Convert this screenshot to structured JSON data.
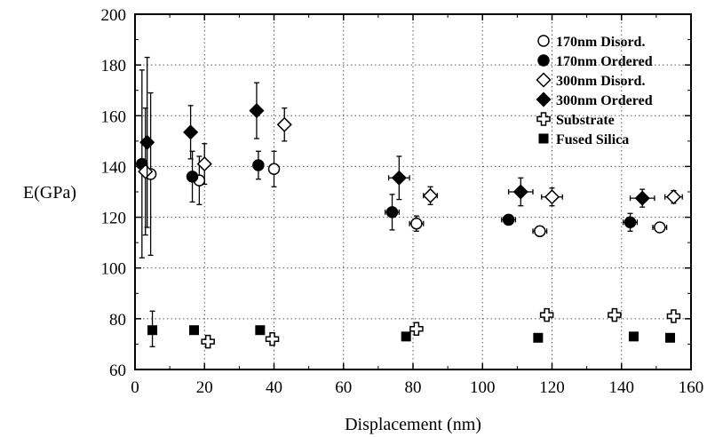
{
  "chart_data": {
    "type": "scatter",
    "xlabel": "Displacement (nm)",
    "ylabel": "E(GPa)",
    "xlim": [
      0,
      160
    ],
    "ylim": [
      60,
      200
    ],
    "xticks": [
      0,
      20,
      40,
      60,
      80,
      100,
      120,
      140,
      160
    ],
    "yticks": [
      60,
      80,
      100,
      120,
      140,
      160,
      180,
      200
    ],
    "grid": true,
    "legend_position": "top-right",
    "series": [
      {
        "name": "170nm Disord.",
        "marker": "open-circle",
        "points": [
          {
            "x": 4.5,
            "y": 137,
            "ylo": 105,
            "yhi": 169
          },
          {
            "x": 18.5,
            "y": 134.5,
            "ylo": 125,
            "yhi": 144
          },
          {
            "x": 40,
            "y": 139,
            "ylo": 132,
            "yhi": 146
          },
          {
            "x": 81,
            "y": 117.5,
            "ylo": 114.5,
            "yhi": 120.5,
            "xerr": 2
          },
          {
            "x": 116.5,
            "y": 114.5,
            "ylo": 112.5,
            "yhi": 116.5,
            "xerr": 2
          },
          {
            "x": 151,
            "y": 116,
            "ylo": 114.5,
            "yhi": 117.5,
            "xerr": 2
          }
        ]
      },
      {
        "name": "170nm Ordered",
        "marker": "filled-circle",
        "points": [
          {
            "x": 2,
            "y": 141,
            "ylo": 104,
            "yhi": 178
          },
          {
            "x": 16.5,
            "y": 136,
            "ylo": 126,
            "yhi": 146
          },
          {
            "x": 35.5,
            "y": 140.5,
            "ylo": 135,
            "yhi": 146
          },
          {
            "x": 74,
            "y": 122,
            "ylo": 115,
            "yhi": 129,
            "xerr": 2
          },
          {
            "x": 107.5,
            "y": 119,
            "ylo": 117.5,
            "yhi": 120.5,
            "xerr": 2
          },
          {
            "x": 142.5,
            "y": 118,
            "ylo": 114.5,
            "yhi": 121.5,
            "xerr": 2
          }
        ]
      },
      {
        "name": "300nm Disord.",
        "marker": "open-diamond",
        "points": [
          {
            "x": 3,
            "y": 138,
            "ylo": 113,
            "yhi": 163
          },
          {
            "x": 20,
            "y": 141,
            "ylo": 133,
            "yhi": 149
          },
          {
            "x": 43,
            "y": 156.5,
            "ylo": 150,
            "yhi": 163
          },
          {
            "x": 85,
            "y": 128.5,
            "ylo": 125,
            "yhi": 132,
            "xerr": 2
          },
          {
            "x": 120,
            "y": 128,
            "ylo": 124.5,
            "yhi": 131.5,
            "xerr": 3
          },
          {
            "x": 155,
            "y": 128,
            "ylo": 125.5,
            "yhi": 130.5,
            "xerr": 2.5
          }
        ]
      },
      {
        "name": "300nm Ordered",
        "marker": "filled-diamond",
        "points": [
          {
            "x": 3.5,
            "y": 149.5,
            "ylo": 116,
            "yhi": 183
          },
          {
            "x": 16,
            "y": 153.5,
            "ylo": 143,
            "yhi": 164
          },
          {
            "x": 35,
            "y": 162,
            "ylo": 151,
            "yhi": 173
          },
          {
            "x": 76,
            "y": 135.5,
            "ylo": 127,
            "yhi": 144,
            "xerr": 3
          },
          {
            "x": 111,
            "y": 130,
            "ylo": 124.5,
            "yhi": 135.5,
            "xerr": 3.5
          },
          {
            "x": 146,
            "y": 127.5,
            "ylo": 124,
            "yhi": 131,
            "xerr": 3.5
          }
        ]
      },
      {
        "name": "Substrate",
        "marker": "open-cross",
        "points": [
          {
            "x": 21,
            "y": 71
          },
          {
            "x": 39.5,
            "y": 72
          },
          {
            "x": 81,
            "y": 76
          },
          {
            "x": 118.5,
            "y": 81.5
          },
          {
            "x": 138,
            "y": 81.5
          },
          {
            "x": 155,
            "y": 81
          }
        ]
      },
      {
        "name": "Fused Silica",
        "marker": "filled-square",
        "points": [
          {
            "x": 5,
            "y": 75.5,
            "ylo": 69,
            "yhi": 83
          },
          {
            "x": 17,
            "y": 75.5
          },
          {
            "x": 36,
            "y": 75.5
          },
          {
            "x": 78,
            "y": 73
          },
          {
            "x": 116,
            "y": 72.5
          },
          {
            "x": 143.5,
            "y": 73
          },
          {
            "x": 154,
            "y": 72.5
          }
        ]
      }
    ]
  }
}
